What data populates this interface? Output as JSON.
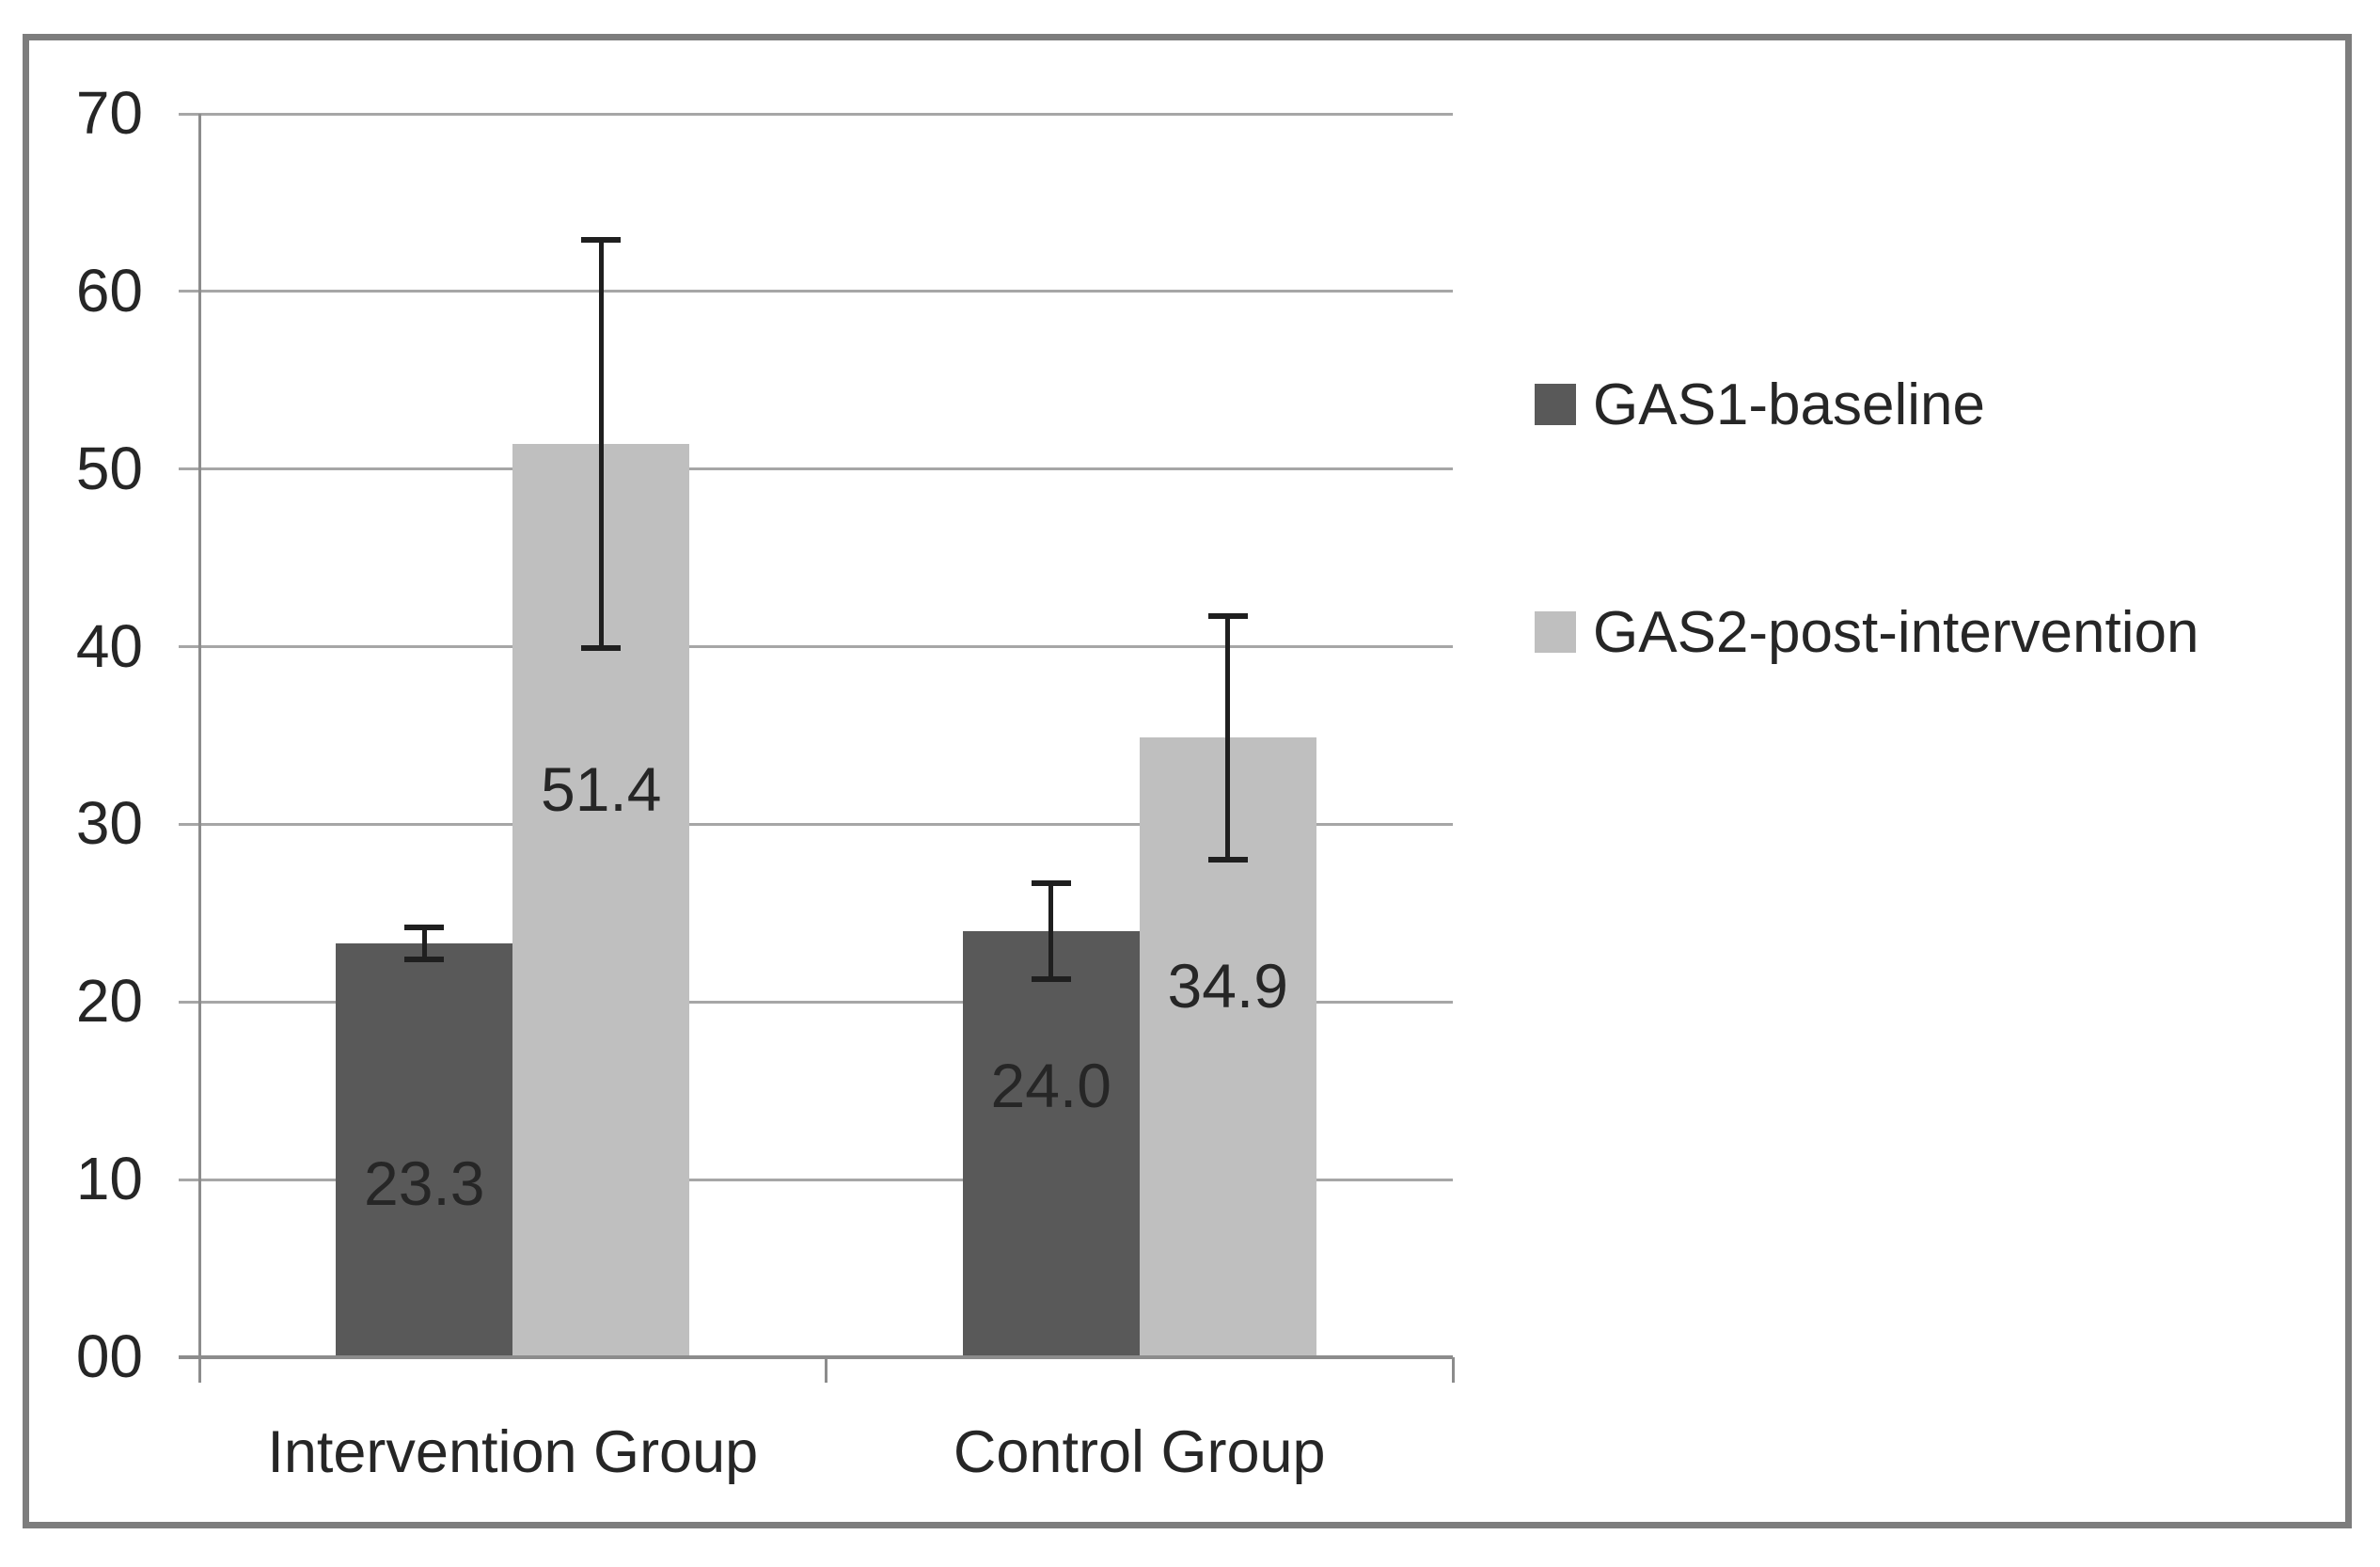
{
  "page": {
    "background": "#ffffff",
    "frame_border_color": "#7d7d7d"
  },
  "chart_data": {
    "type": "bar",
    "categories": [
      "Intervention Group",
      "Control Group"
    ],
    "series": [
      {
        "name": "GAS1-baseline",
        "color": "#595959",
        "values": [
          23.3,
          24.0
        ],
        "data_labels": [
          "23.3",
          "24.0"
        ],
        "error_low": [
          22.4,
          21.3
        ],
        "error_high": [
          24.2,
          26.7
        ],
        "label_center_value": [
          9.8,
          15.3
        ]
      },
      {
        "name": "GAS2-post-intervention",
        "color": "#bfbfbf",
        "values": [
          51.4,
          34.9
        ],
        "data_labels": [
          "51.4",
          "34.9"
        ],
        "error_low": [
          39.9,
          28.0
        ],
        "error_high": [
          62.9,
          41.7
        ],
        "label_center_value": [
          32.0,
          20.9
        ]
      }
    ],
    "title": "",
    "xlabel": "",
    "ylabel": "",
    "ylim": [
      0,
      70
    ],
    "ytick_step": 10,
    "ytick_labels": [
      "00",
      "10",
      "20",
      "30",
      "40",
      "50",
      "60",
      "70"
    ],
    "grid": true,
    "legend_position": "right",
    "gridline_color": "#a6a6a6",
    "axis_color": "#8c8c8c",
    "errorbar_color": "#1f1f1f",
    "text_color": "#262626"
  }
}
